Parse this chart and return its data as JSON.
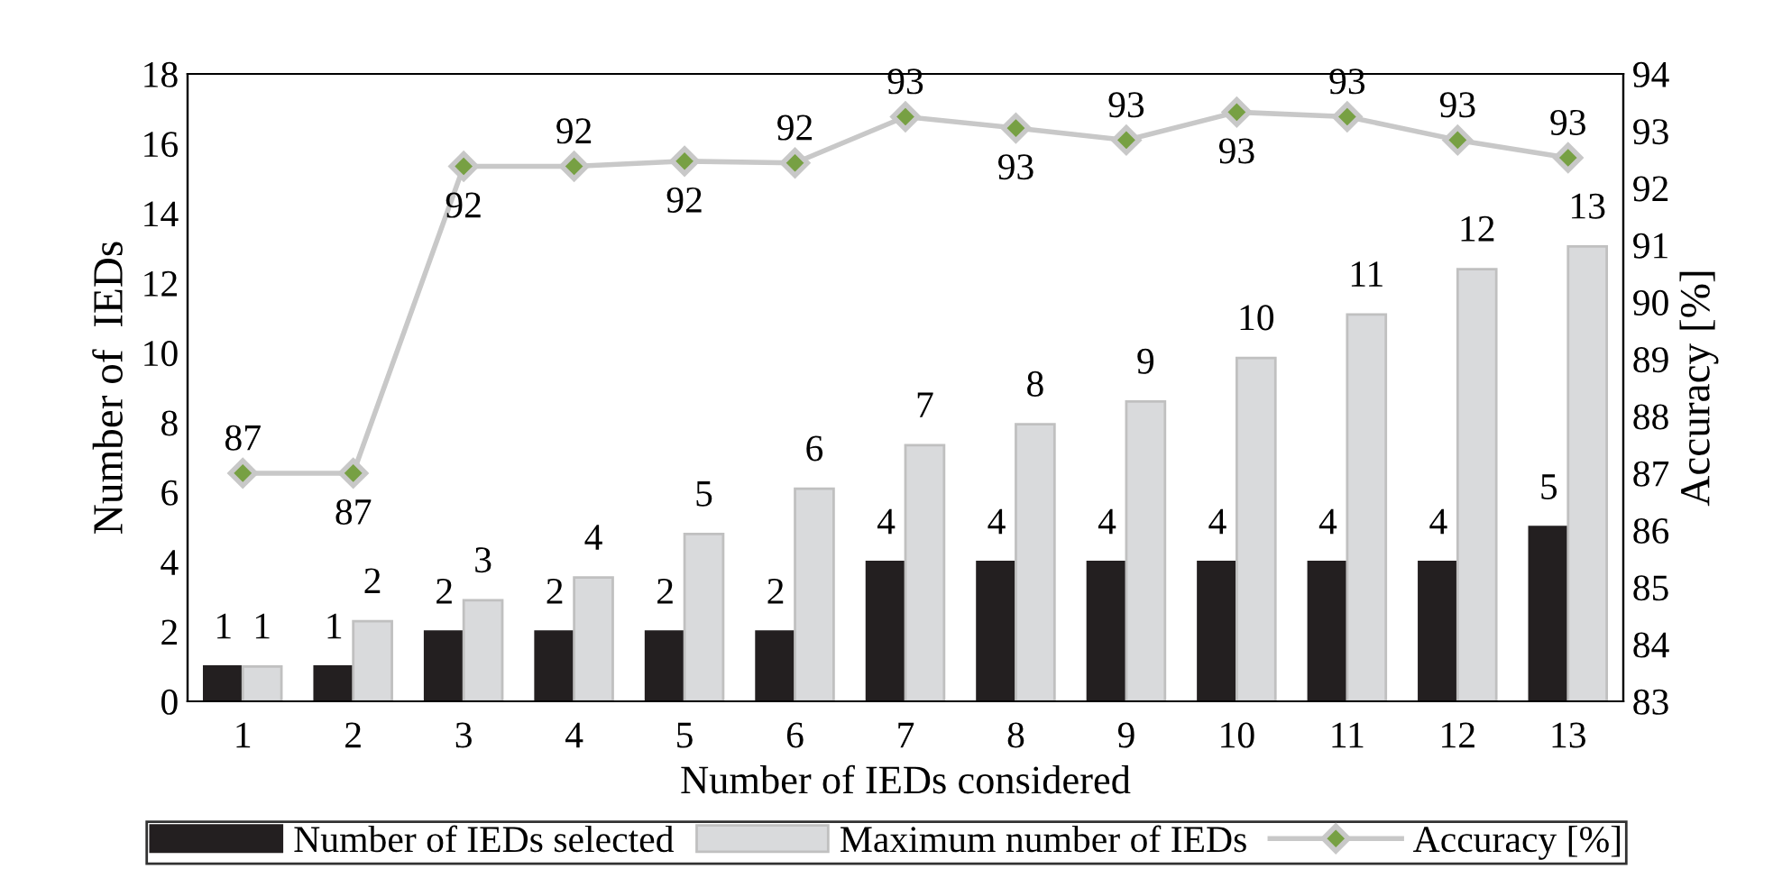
{
  "chart_data": {
    "type": "bar",
    "xlabel": "Number of IEDs considered",
    "ylabel": "Number of  IEDs",
    "y2label": "Accuracy [%]",
    "categories": [
      "1",
      "2",
      "3",
      "4",
      "5",
      "6",
      "7",
      "8",
      "9",
      "10",
      "11",
      "12",
      "13"
    ],
    "series": [
      {
        "name": "Number of IEDs selected",
        "color": "#231f20",
        "values": [
          1,
          1,
          2,
          2,
          2,
          2,
          4,
          4,
          4,
          4,
          4,
          4,
          5
        ],
        "value_labels": [
          "1",
          "1",
          "2",
          "2",
          "2",
          "2",
          "4",
          "4",
          "4",
          "4",
          "4",
          "4",
          "5"
        ]
      },
      {
        "name": "Maximum number of IEDs",
        "color": "#d9dadc",
        "values": [
          1,
          2.3,
          2.9,
          3.55,
          4.8,
          6.1,
          7.35,
          7.95,
          8.6,
          9.85,
          11.1,
          12.4,
          13.05
        ],
        "value_labels": [
          "1",
          "2",
          "3",
          "4",
          "5",
          "6",
          "7",
          "8",
          "9",
          "10",
          "11",
          "12",
          "13"
        ]
      },
      {
        "name": "Accuracy [%]",
        "type": "line",
        "axis": "y2",
        "color": "#c8c8c8",
        "marker": "diamond",
        "values": [
          87.0,
          87.0,
          92.38,
          92.38,
          92.47,
          92.44,
          93.25,
          93.05,
          92.84,
          93.33,
          93.25,
          92.84,
          92.53
        ],
        "value_labels": [
          "87",
          "87",
          "92",
          "92",
          "92",
          "92",
          "93",
          "93",
          "93",
          "93",
          "93",
          "93",
          "93"
        ]
      }
    ],
    "ylim": [
      0,
      18
    ],
    "yticks": [
      0,
      2,
      4,
      6,
      8,
      10,
      12,
      14,
      16,
      18
    ],
    "y2lim": [
      83,
      94
    ],
    "y2ticks": [
      83,
      84,
      85,
      86,
      87,
      88,
      89,
      90,
      91,
      92,
      93,
      94
    ],
    "grid": false,
    "legend": "bottom"
  }
}
